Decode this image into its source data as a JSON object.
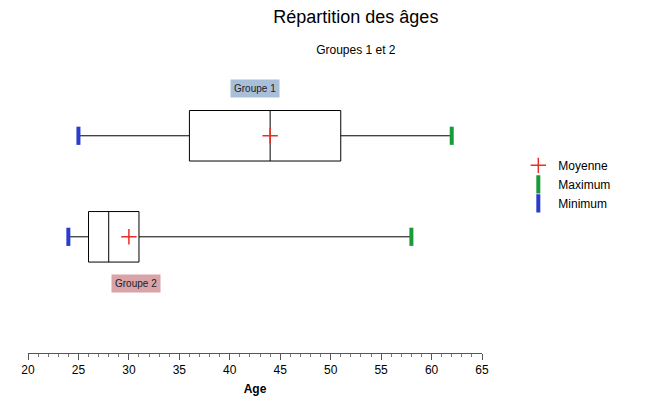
{
  "chart_data": {
    "type": "box",
    "title": "Répartition des âges",
    "subtitle": "Groupes 1 et 2",
    "x_label": "Age",
    "orientation": "horizontal",
    "categories": [
      "Groupe 1",
      "Groupe 2"
    ],
    "colors": [
      "#a9bfd9",
      "#d9a3a8"
    ],
    "q1": [
      36,
      26
    ],
    "median": [
      44,
      28
    ],
    "q3": [
      51,
      31
    ],
    "series": [
      {
        "name": "Moyenne",
        "color": "#e8302a",
        "marker": "cross",
        "values": [
          44,
          30
        ]
      },
      {
        "name": "Maximum",
        "color": "#1a9b3a",
        "marker": "line",
        "values": [
          62,
          58
        ]
      },
      {
        "name": "Minimum",
        "color": "#2a3ccc",
        "marker": "line",
        "values": [
          25,
          24
        ]
      }
    ],
    "xlim": [
      20,
      65
    ],
    "xticks": [
      20,
      25,
      30,
      35,
      40,
      45,
      50,
      55,
      60,
      65
    ],
    "grid": false,
    "tick_labels": "x",
    "legend": "right"
  }
}
